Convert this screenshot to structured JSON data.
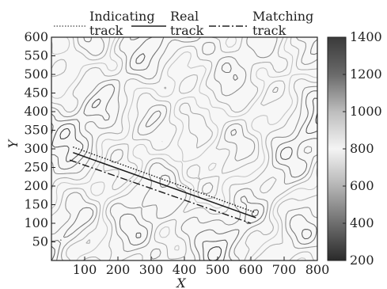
{
  "chart_data": {
    "type": "contour",
    "xlabel": "X",
    "ylabel": "Y",
    "xlim": [
      0,
      800
    ],
    "ylim": [
      0,
      600
    ],
    "xticks": [
      100,
      200,
      300,
      400,
      500,
      600,
      700,
      800
    ],
    "yticks": [
      50,
      100,
      150,
      200,
      250,
      300,
      350,
      400,
      450,
      500,
      550,
      600
    ],
    "colorbar": {
      "min": 200,
      "max": 1400,
      "ticks": [
        200,
        400,
        600,
        800,
        1000,
        1200,
        1400
      ],
      "colors": [
        "#2a2a2a",
        "#6e6e6e",
        "#b4b4b4",
        "#f4f4f4",
        "#bdbdbd",
        "#6a6a6a",
        "#3a3a3a"
      ]
    },
    "legend": {
      "placement": "top",
      "entries": [
        {
          "label": "Indicating track",
          "style": "dotted"
        },
        {
          "label": "Real track",
          "style": "solid"
        },
        {
          "label": "Matching track",
          "style": "dash-dot"
        }
      ]
    },
    "series": [
      {
        "name": "Indicating track",
        "style": "dotted",
        "x": [
          65,
          610
        ],
        "y": [
          305,
          130
        ]
      },
      {
        "name": "Real track",
        "style": "solid",
        "x": [
          65,
          615
        ],
        "y": [
          290,
          115
        ]
      },
      {
        "name": "Matching track",
        "style": "dash-dot",
        "x": [
          55,
          600
        ],
        "y": [
          270,
          100
        ]
      }
    ]
  }
}
